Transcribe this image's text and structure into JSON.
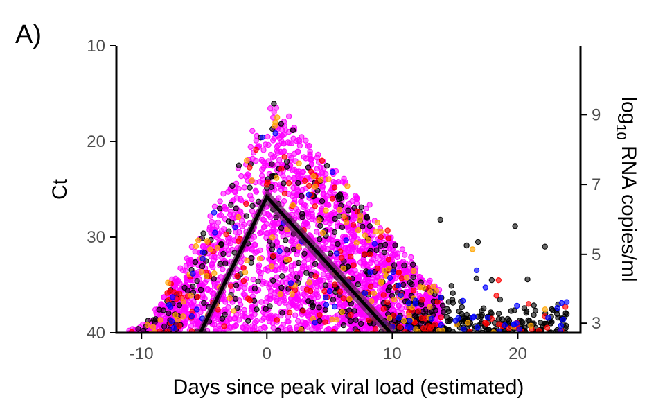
{
  "panel_label": "A)",
  "colors": {
    "black": "#000000",
    "magenta": "#ff00ff",
    "red": "#ff0000",
    "orange": "#ffa500",
    "blue": "#0000ff",
    "ribbon": "#6a2060"
  },
  "chart_data": {
    "type": "scatter",
    "xlabel": "Days since peak viral load (estimated)",
    "ylabel": "Ct",
    "ylabel_right_prefix": "log",
    "ylabel_right_sub": "10",
    "ylabel_right_suffix": " RNA copies/ml",
    "xlim": [
      -12,
      25
    ],
    "ylim": [
      10,
      40
    ],
    "y_reversed": true,
    "x_ticks": [
      -10,
      0,
      10,
      20
    ],
    "x_tick_labels": [
      "-10",
      "0",
      "10",
      "20"
    ],
    "y_ticks": [
      10,
      20,
      30,
      40
    ],
    "y_tick_labels": [
      "10",
      "20",
      "30",
      "40"
    ],
    "y_right_ticks": [
      {
        "ct": 39.0,
        "label": "3"
      },
      {
        "ct": 31.8,
        "label": "5"
      },
      {
        "ct": 24.5,
        "label": "7"
      },
      {
        "ct": 17.2,
        "label": "9"
      }
    ],
    "grid": false,
    "legend": "none",
    "series": [
      {
        "color_key": "magenta",
        "point_count": 2400
      },
      {
        "color_key": "black",
        "point_count": 520
      },
      {
        "color_key": "red",
        "point_count": 160
      },
      {
        "color_key": "orange",
        "point_count": 120
      },
      {
        "color_key": "blue",
        "point_count": 80
      }
    ],
    "fit_line": {
      "x": [
        -5.5,
        0,
        10
      ],
      "y": [
        40.5,
        25.8,
        40.2
      ],
      "band_half_width_ct": 0.8
    }
  }
}
